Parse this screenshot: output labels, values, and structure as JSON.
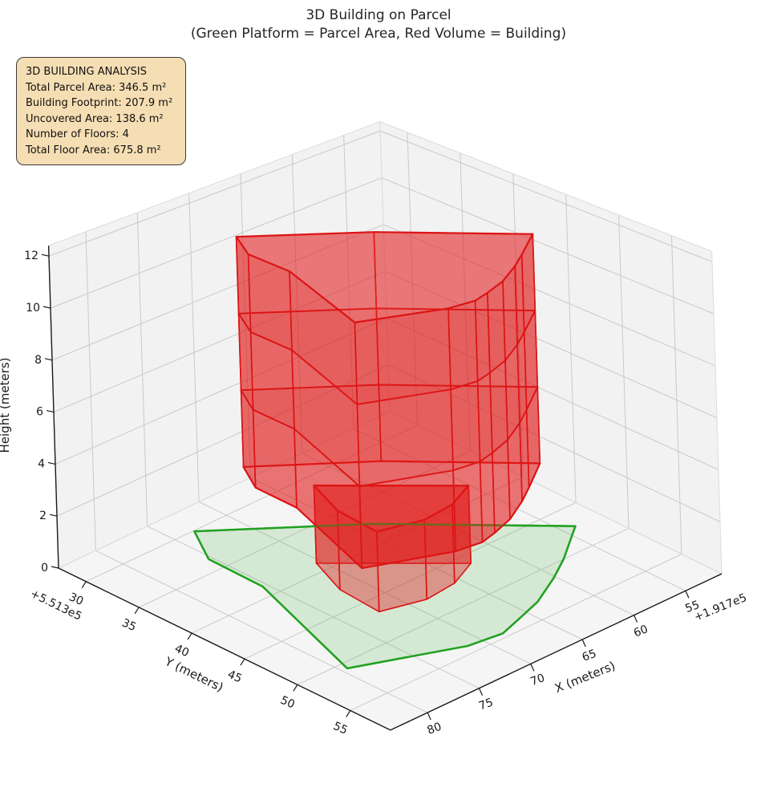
{
  "figure": {
    "title": "3D Building on Parcel",
    "subtitle": "(Green Platform = Parcel Area, Red Volume = Building)"
  },
  "info_box": {
    "bg": "#f5deb3",
    "border": "#3a3a3a",
    "lines": [
      "3D BUILDING ANALYSIS",
      "Total Parcel Area: 346.5 m²",
      "Building Footprint: 207.9 m²",
      "Uncovered Area: 138.6 m²",
      "Number of Floors: 4",
      "Total Floor Area: 675.8 m²"
    ]
  },
  "chart_data": {
    "type": "3d-building-plot",
    "title": "3D Building on Parcel",
    "subtitle": "(Green Platform = Parcel Area, Red Volume = Building)",
    "legend_note": "Green Platform = Parcel Area, Red Volume = Building",
    "axes": {
      "x": {
        "label": "X (meters)",
        "ticks": [
          55,
          60,
          65,
          70,
          75,
          80
        ],
        "offset_text": "+1.917e5",
        "range": [
          51.5,
          83.6
        ]
      },
      "y": {
        "label": "Y (meters)",
        "ticks": [
          30,
          35,
          40,
          45,
          50,
          55
        ],
        "offset_text": "+5.513e5",
        "range": [
          27.4,
          58.8
        ]
      },
      "z": {
        "label": "Height (meters)",
        "ticks": [
          0,
          2,
          4,
          6,
          8,
          10,
          12
        ],
        "range": [
          0,
          12.4
        ]
      }
    },
    "grid": true,
    "colors": {
      "pane": "#f2f2f2",
      "grid_line": "#c9c9c9",
      "pane_edge": "#dedede",
      "axis_line": "#1a1a1a",
      "parcel_edge": "#21a121",
      "parcel_fill": "rgba(80,180,80,0.20)",
      "building_edge": "#dc1414",
      "building_fill": "rgba(225,25,25,0.40)",
      "slab_fill": "rgba(225,25,25,0.10)"
    },
    "parcel": {
      "area_m2": 346.5,
      "vertices": [
        [
          73.2,
          30.1
        ],
        [
          75.3,
          33.5
        ],
        [
          75.4,
          38.7
        ],
        [
          79.5,
          50.7
        ],
        [
          71.3,
          54.1
        ],
        [
          68.3,
          54.5
        ],
        [
          66.3,
          53.9
        ],
        [
          63.4,
          53.0
        ],
        [
          60.2,
          51.4
        ],
        [
          57.8,
          50.0
        ],
        [
          53.9,
          47.3
        ],
        [
          63.7,
          37.6
        ]
      ]
    },
    "building": {
      "footprint_area_m2": 207.9,
      "uncovered_area_m2": 138.6,
      "floors": 4,
      "floor_height_m": 3,
      "height_m": 12,
      "total_floor_area_m2": 675.8,
      "tower": {
        "z0": 3,
        "z1": 12,
        "slab_levels": [
          6,
          9
        ],
        "footprint": [
          [
            71.9,
            33.7
          ],
          [
            73.5,
            36.4
          ],
          [
            73.6,
            40.4
          ],
          [
            76.8,
            49.7
          ],
          [
            70.4,
            52.3
          ],
          [
            68.1,
            52.6
          ],
          [
            66.5,
            52.2
          ],
          [
            64.3,
            51.5
          ],
          [
            61.8,
            50.2
          ],
          [
            60.0,
            49.1
          ],
          [
            56.9,
            47.1
          ],
          [
            64.5,
            39.5
          ]
        ]
      },
      "ground_floor": {
        "z0": 0,
        "z1": 3,
        "footprint": [
          [
            70.4,
            38.9
          ],
          [
            71.9,
            42.6
          ],
          [
            72.2,
            46.6
          ],
          [
            68.6,
            47.6
          ],
          [
            65.6,
            47.3
          ],
          [
            62.8,
            46.1
          ]
        ]
      }
    }
  }
}
